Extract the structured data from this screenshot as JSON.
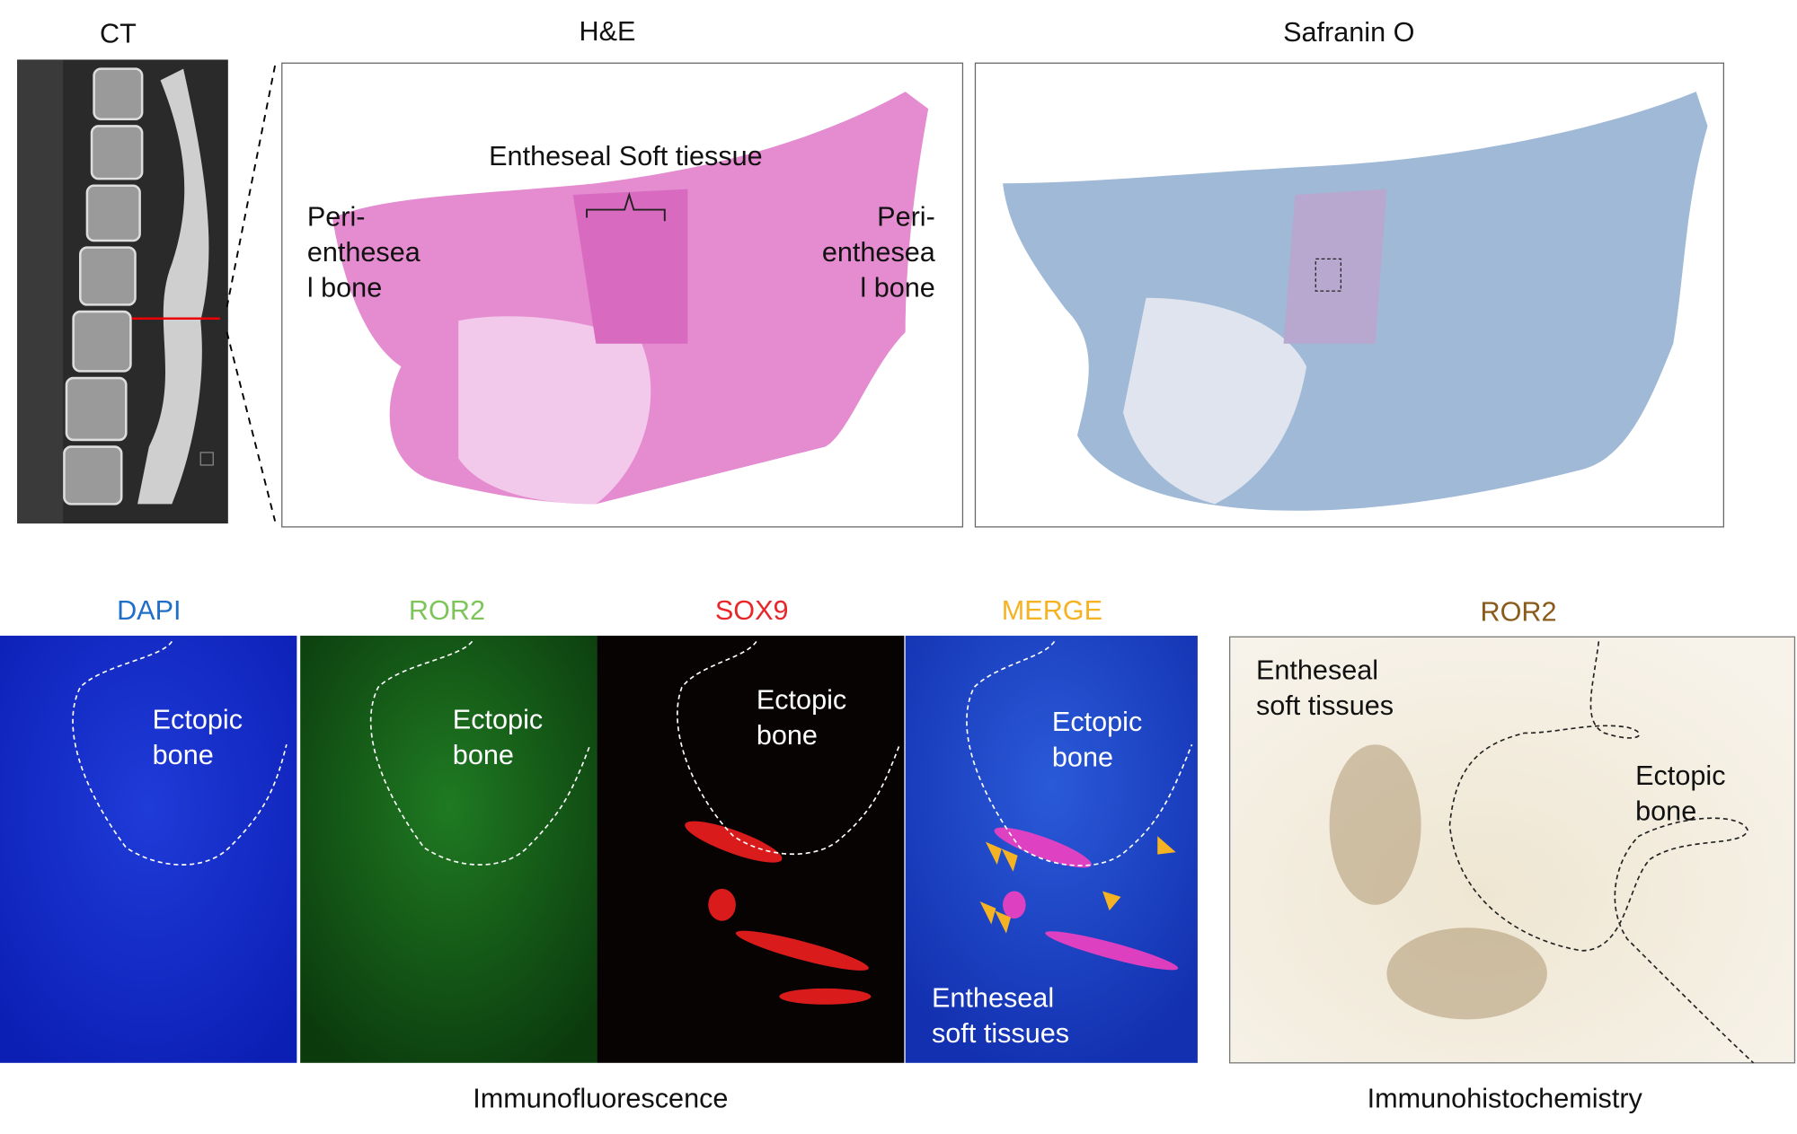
{
  "ct": {
    "title": "CT"
  },
  "he": {
    "title": "H&E",
    "center_label": "Entheseal Soft tiessue",
    "left_label": [
      "Peri-",
      "enthesea",
      "l bone"
    ],
    "right_label": [
      "Peri-",
      "enthesea",
      "l bone"
    ]
  },
  "safranin": {
    "title": "Safranin O"
  },
  "immunofluorescence": {
    "caption": "Immunofluorescence",
    "channels": [
      {
        "title": "DAPI",
        "label": [
          "Ectopic",
          "bone"
        ]
      },
      {
        "title": "ROR2",
        "label": [
          "Ectopic",
          "bone"
        ]
      },
      {
        "title": "SOX9",
        "label": [
          "Ectopic",
          "bone"
        ]
      },
      {
        "title": "MERGE",
        "label": [
          "Ectopic",
          "bone"
        ],
        "soft_label": [
          "Entheseal",
          "soft tissues"
        ]
      }
    ]
  },
  "immunohistochemistry": {
    "caption": "Immunohistochemistry",
    "title": "ROR2",
    "soft_label": [
      "Entheseal",
      "soft tissues"
    ],
    "label": [
      "Ectopic",
      "bone"
    ]
  }
}
